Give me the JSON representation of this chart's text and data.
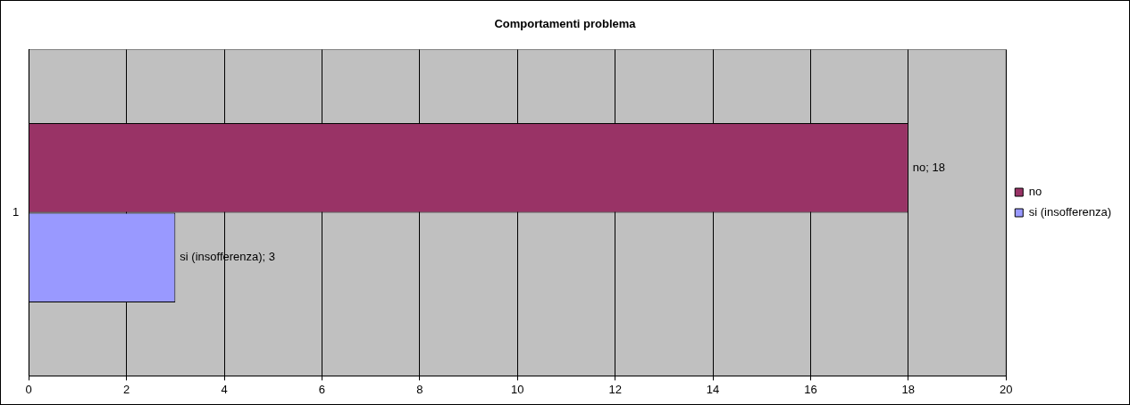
{
  "chart_data": {
    "type": "bar",
    "orientation": "horizontal",
    "title": "Comportamenti problema",
    "categories": [
      "1"
    ],
    "series": [
      {
        "name": "no",
        "color": "#993366",
        "values": [
          18
        ],
        "value_labels": [
          "no; 18"
        ]
      },
      {
        "name": "si (insofferenza)",
        "color": "#9999ff",
        "values": [
          3
        ],
        "value_labels": [
          "si (insofferenza); 3"
        ]
      }
    ],
    "xlim": [
      0,
      20
    ],
    "xticks": [
      0,
      2,
      4,
      6,
      8,
      10,
      12,
      14,
      16,
      18,
      20
    ],
    "grid": "x",
    "legend": "right"
  }
}
